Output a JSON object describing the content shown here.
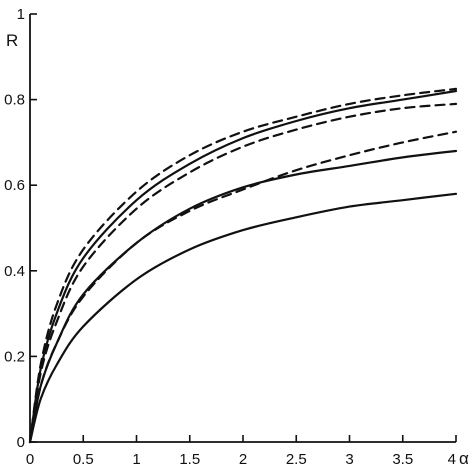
{
  "chart_data": {
    "type": "line",
    "xlabel": "α",
    "ylabel": "R",
    "xlim": [
      0,
      4
    ],
    "ylim": [
      0,
      1
    ],
    "x_ticks": [
      "0",
      "0.5",
      "1",
      "1.5",
      "2",
      "2.5",
      "3",
      "3.5",
      "4"
    ],
    "y_ticks": [
      "0",
      "0.2",
      "0.4",
      "0.6",
      "0.8",
      "1"
    ],
    "grid": false,
    "legend": "none",
    "x": [
      0,
      0.1,
      0.25,
      0.5,
      1,
      1.5,
      2,
      2.5,
      3,
      3.5,
      4
    ],
    "series": [
      {
        "style": "dashed",
        "values": [
          0,
          0.18,
          0.32,
          0.45,
          0.585,
          0.67,
          0.725,
          0.76,
          0.79,
          0.81,
          0.825
        ]
      },
      {
        "style": "solid",
        "values": [
          0,
          0.17,
          0.3,
          0.43,
          0.565,
          0.65,
          0.71,
          0.75,
          0.78,
          0.8,
          0.82
        ]
      },
      {
        "style": "dashed",
        "values": [
          0,
          0.16,
          0.28,
          0.41,
          0.545,
          0.63,
          0.69,
          0.73,
          0.76,
          0.78,
          0.79
        ]
      },
      {
        "style": "dashed",
        "values": [
          0,
          0.13,
          0.23,
          0.34,
          0.465,
          0.54,
          0.59,
          0.635,
          0.67,
          0.7,
          0.725
        ]
      },
      {
        "style": "solid",
        "values": [
          0,
          0.13,
          0.23,
          0.345,
          0.465,
          0.545,
          0.595,
          0.625,
          0.645,
          0.665,
          0.68
        ]
      },
      {
        "style": "solid",
        "values": [
          0,
          0.1,
          0.18,
          0.27,
          0.38,
          0.45,
          0.495,
          0.525,
          0.55,
          0.565,
          0.58
        ]
      }
    ]
  }
}
